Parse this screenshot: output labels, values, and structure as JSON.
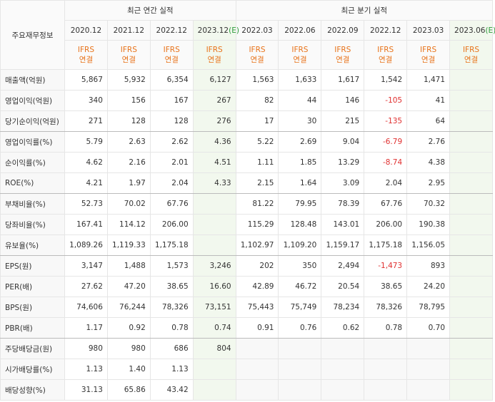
{
  "header": {
    "corner": "주요재무정보",
    "annual_title": "최근 연간 실적",
    "quarter_title": "최근 분기 실적",
    "periods": [
      {
        "date": "2020.12"
      },
      {
        "date": "2021.12"
      },
      {
        "date": "2022.12"
      },
      {
        "date": "2023.12",
        "mark": "(E)"
      },
      {
        "date": "2022.03"
      },
      {
        "date": "2022.06"
      },
      {
        "date": "2022.09"
      },
      {
        "date": "2022.12"
      },
      {
        "date": "2023.03"
      },
      {
        "date": "2023.06",
        "mark": "(E)"
      }
    ],
    "standards": [
      "IFRS\n연결",
      "IFRS\n연결",
      "IFRS\n연결",
      "IFRS\n연결",
      "IFRS\n연결",
      "IFRS\n연결",
      "IFRS\n연결",
      "IFRS\n연결",
      "IFRS\n연결",
      "IFRS\n연결"
    ]
  },
  "table": {
    "rows": [
      {
        "label": "매출액(억원)",
        "cells": [
          "5,867",
          "5,932",
          "6,354",
          "6,127",
          "1,563",
          "1,633",
          "1,617",
          "1,542",
          "1,471",
          null
        ]
      },
      {
        "label": "영업이익(억원)",
        "cells": [
          "340",
          "156",
          "167",
          "267",
          "82",
          "44",
          "146",
          "-105",
          "41",
          null
        ]
      },
      {
        "label": "당기순이익(억원)",
        "cells": [
          "271",
          "128",
          "128",
          "276",
          "17",
          "30",
          "215",
          "-135",
          "64",
          null
        ]
      },
      {
        "label": "영업이익률(%)",
        "cells": [
          "5.79",
          "2.63",
          "2.62",
          "4.36",
          "5.22",
          "2.69",
          "9.04",
          "-6.79",
          "2.76",
          null
        ]
      },
      {
        "label": "순이익률(%)",
        "cells": [
          "4.62",
          "2.16",
          "2.01",
          "4.51",
          "1.11",
          "1.85",
          "13.29",
          "-8.74",
          "4.38",
          null
        ]
      },
      {
        "label": "ROE(%)",
        "cells": [
          "4.21",
          "1.97",
          "2.04",
          "4.33",
          "2.15",
          "1.64",
          "3.09",
          "2.04",
          "2.95",
          null
        ]
      },
      {
        "label": "부채비율(%)",
        "cells": [
          "52.73",
          "70.02",
          "67.76",
          null,
          "81.22",
          "79.95",
          "78.39",
          "67.76",
          "70.32",
          null
        ]
      },
      {
        "label": "당좌비율(%)",
        "cells": [
          "167.41",
          "114.12",
          "206.00",
          null,
          "115.29",
          "128.48",
          "143.01",
          "206.00",
          "190.38",
          null
        ]
      },
      {
        "label": "유보율(%)",
        "cells": [
          "1,089.26",
          "1,119.33",
          "1,175.18",
          null,
          "1,102.97",
          "1,109.20",
          "1,159.17",
          "1,175.18",
          "1,156.05",
          null
        ]
      },
      {
        "label": "EPS(원)",
        "cells": [
          "3,147",
          "1,488",
          "1,573",
          "3,246",
          "202",
          "350",
          "2,494",
          "-1,473",
          "893",
          null
        ]
      },
      {
        "label": "PER(배)",
        "cells": [
          "27.62",
          "47.20",
          "38.65",
          "16.60",
          "42.89",
          "46.72",
          "20.54",
          "38.65",
          "24.20",
          null
        ]
      },
      {
        "label": "BPS(원)",
        "cells": [
          "74,606",
          "76,244",
          "78,326",
          "73,151",
          "75,443",
          "75,749",
          "78,234",
          "78,326",
          "78,795",
          null
        ]
      },
      {
        "label": "PBR(배)",
        "cells": [
          "1.17",
          "0.92",
          "0.78",
          "0.74",
          "0.91",
          "0.76",
          "0.62",
          "0.78",
          "0.70",
          null
        ]
      },
      {
        "label": "주당배당금(원)",
        "cells": [
          "980",
          "980",
          "686",
          "804",
          null,
          null,
          null,
          null,
          null,
          null
        ]
      },
      {
        "label": "시가배당률(%)",
        "cells": [
          "1.13",
          "1.40",
          "1.13",
          null,
          null,
          null,
          null,
          null,
          null,
          null
        ]
      },
      {
        "label": "배당성향(%)",
        "cells": [
          "31.13",
          "65.86",
          "43.42",
          null,
          null,
          null,
          null,
          null,
          null,
          null
        ]
      }
    ]
  }
}
